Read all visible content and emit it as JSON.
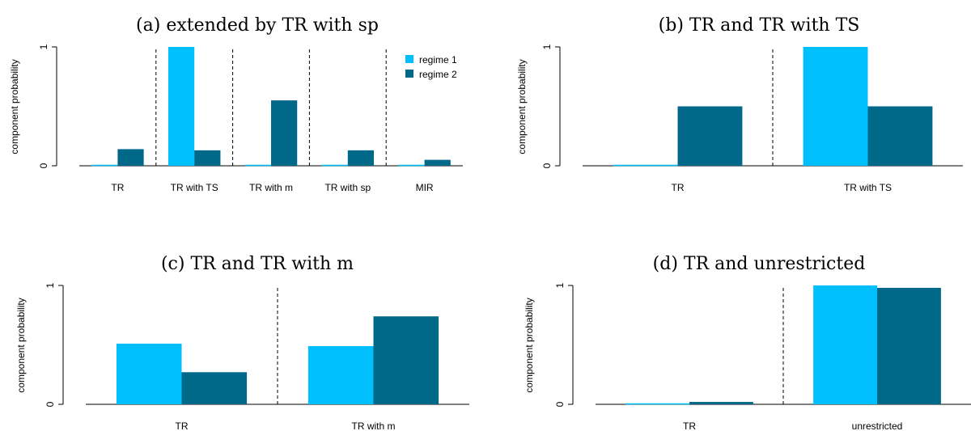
{
  "colors": {
    "regime1": "#00BFFF",
    "regime2": "#006888",
    "axis": "#000000"
  },
  "legend": {
    "regime1": "regime 1",
    "regime2": "regime 2",
    "position": "top-right",
    "panel": 0
  },
  "chart_data": [
    {
      "type": "bar",
      "title": "(a) extended by TR with sp",
      "ylabel": "component probability",
      "ylim": [
        0,
        1
      ],
      "yticks": [
        "0",
        "1"
      ],
      "categories": [
        "TR",
        "TR with TS",
        "TR with m",
        "TR with sp",
        "MIR"
      ],
      "series": [
        {
          "name": "regime 1",
          "values": [
            0.0,
            1.0,
            0.0,
            0.0,
            0.0
          ]
        },
        {
          "name": "regime 2",
          "values": [
            0.14,
            0.13,
            0.55,
            0.13,
            0.05
          ]
        }
      ],
      "separators": true,
      "legend": true
    },
    {
      "type": "bar",
      "title": "(b) TR and TR with TS",
      "ylabel": "component probability",
      "ylim": [
        0,
        1
      ],
      "yticks": [
        "0",
        "1"
      ],
      "categories": [
        "TR",
        "TR with TS"
      ],
      "series": [
        {
          "name": "regime 1",
          "values": [
            0.0,
            1.0
          ]
        },
        {
          "name": "regime 2",
          "values": [
            0.5,
            0.5
          ]
        }
      ],
      "separators": true,
      "legend": false
    },
    {
      "type": "bar",
      "title": "(c) TR and TR with m",
      "ylabel": "component probability",
      "ylim": [
        0,
        1
      ],
      "yticks": [
        "0",
        "1"
      ],
      "categories": [
        "TR",
        "TR with m"
      ],
      "series": [
        {
          "name": "regime 1",
          "values": [
            0.51,
            0.49
          ]
        },
        {
          "name": "regime 2",
          "values": [
            0.27,
            0.74
          ]
        }
      ],
      "separators": true,
      "legend": false
    },
    {
      "type": "bar",
      "title": "(d) TR and unrestricted",
      "ylabel": "component probability",
      "ylim": [
        0,
        1
      ],
      "yticks": [
        "0",
        "1"
      ],
      "categories": [
        "TR",
        "unrestricted"
      ],
      "series": [
        {
          "name": "regime 1",
          "values": [
            0.0,
            1.0
          ]
        },
        {
          "name": "regime 2",
          "values": [
            0.02,
            0.98
          ]
        }
      ],
      "separators": true,
      "legend": false
    }
  ]
}
